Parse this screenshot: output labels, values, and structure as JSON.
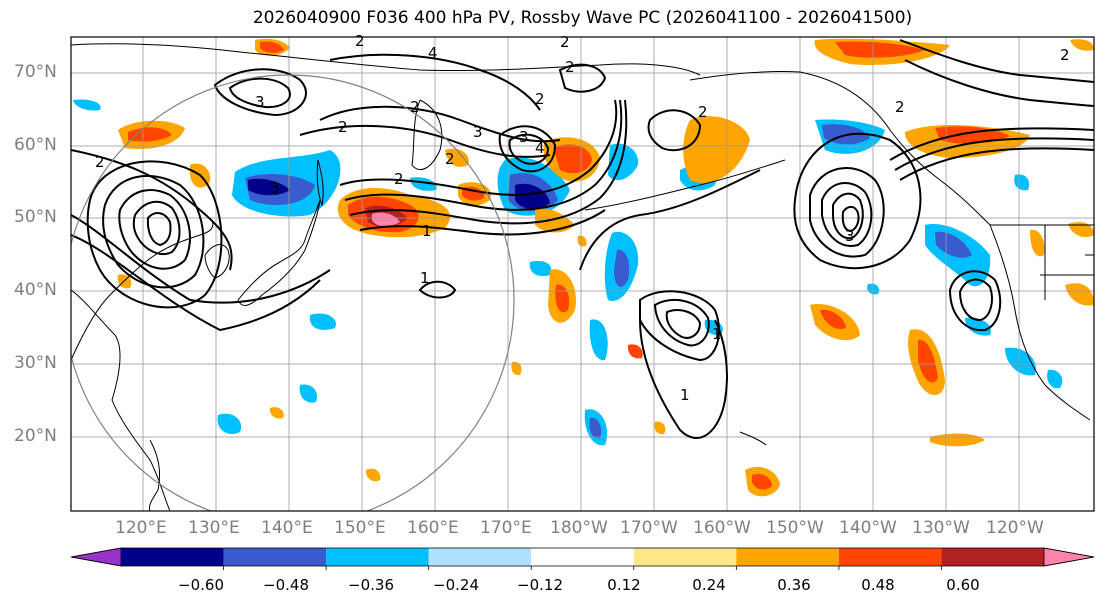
{
  "title": "2026040900 F036 400 hPa PV, Rossby Wave PC (2026041100 - 2026041500)",
  "lat_labels": [
    "70°N",
    "60°N",
    "50°N",
    "40°N",
    "30°N",
    "20°N"
  ],
  "lon_labels": [
    "120°E",
    "130°E",
    "140°E",
    "150°E",
    "160°E",
    "170°E",
    "180°W",
    "170°W",
    "160°W",
    "150°W",
    "140°W",
    "130°W",
    "120°W"
  ],
  "colorbar": {
    "ticks": [
      "−0.60",
      "−0.48",
      "−0.36",
      "−0.24",
      "−0.12",
      "0.12",
      "0.24",
      "0.36",
      "0.48",
      "0.60"
    ],
    "colors": [
      "#9932cc",
      "#00008b",
      "#3a5bcd",
      "#00bfff",
      "#b0e2ff",
      "#ffffff",
      "#ffe68a",
      "#ffa500",
      "#ff4500",
      "#b22222",
      "#ff82ab"
    ]
  },
  "contour_labels": [
    "2",
    "3",
    "4",
    "2",
    "2",
    "3",
    "2",
    "2",
    "1",
    "3",
    "4",
    "2",
    "2",
    "2",
    "1",
    "2",
    "3",
    "1",
    "1",
    "2",
    "2",
    "3",
    "2"
  ],
  "palette": {
    "pos_light": "#ffa500",
    "pos_mid": "#ff4500",
    "pos_dark": "#ff82ab",
    "neg_light": "#00bfff",
    "neg_mid": "#3a5bcd",
    "neg_dark": "#00008b"
  }
}
